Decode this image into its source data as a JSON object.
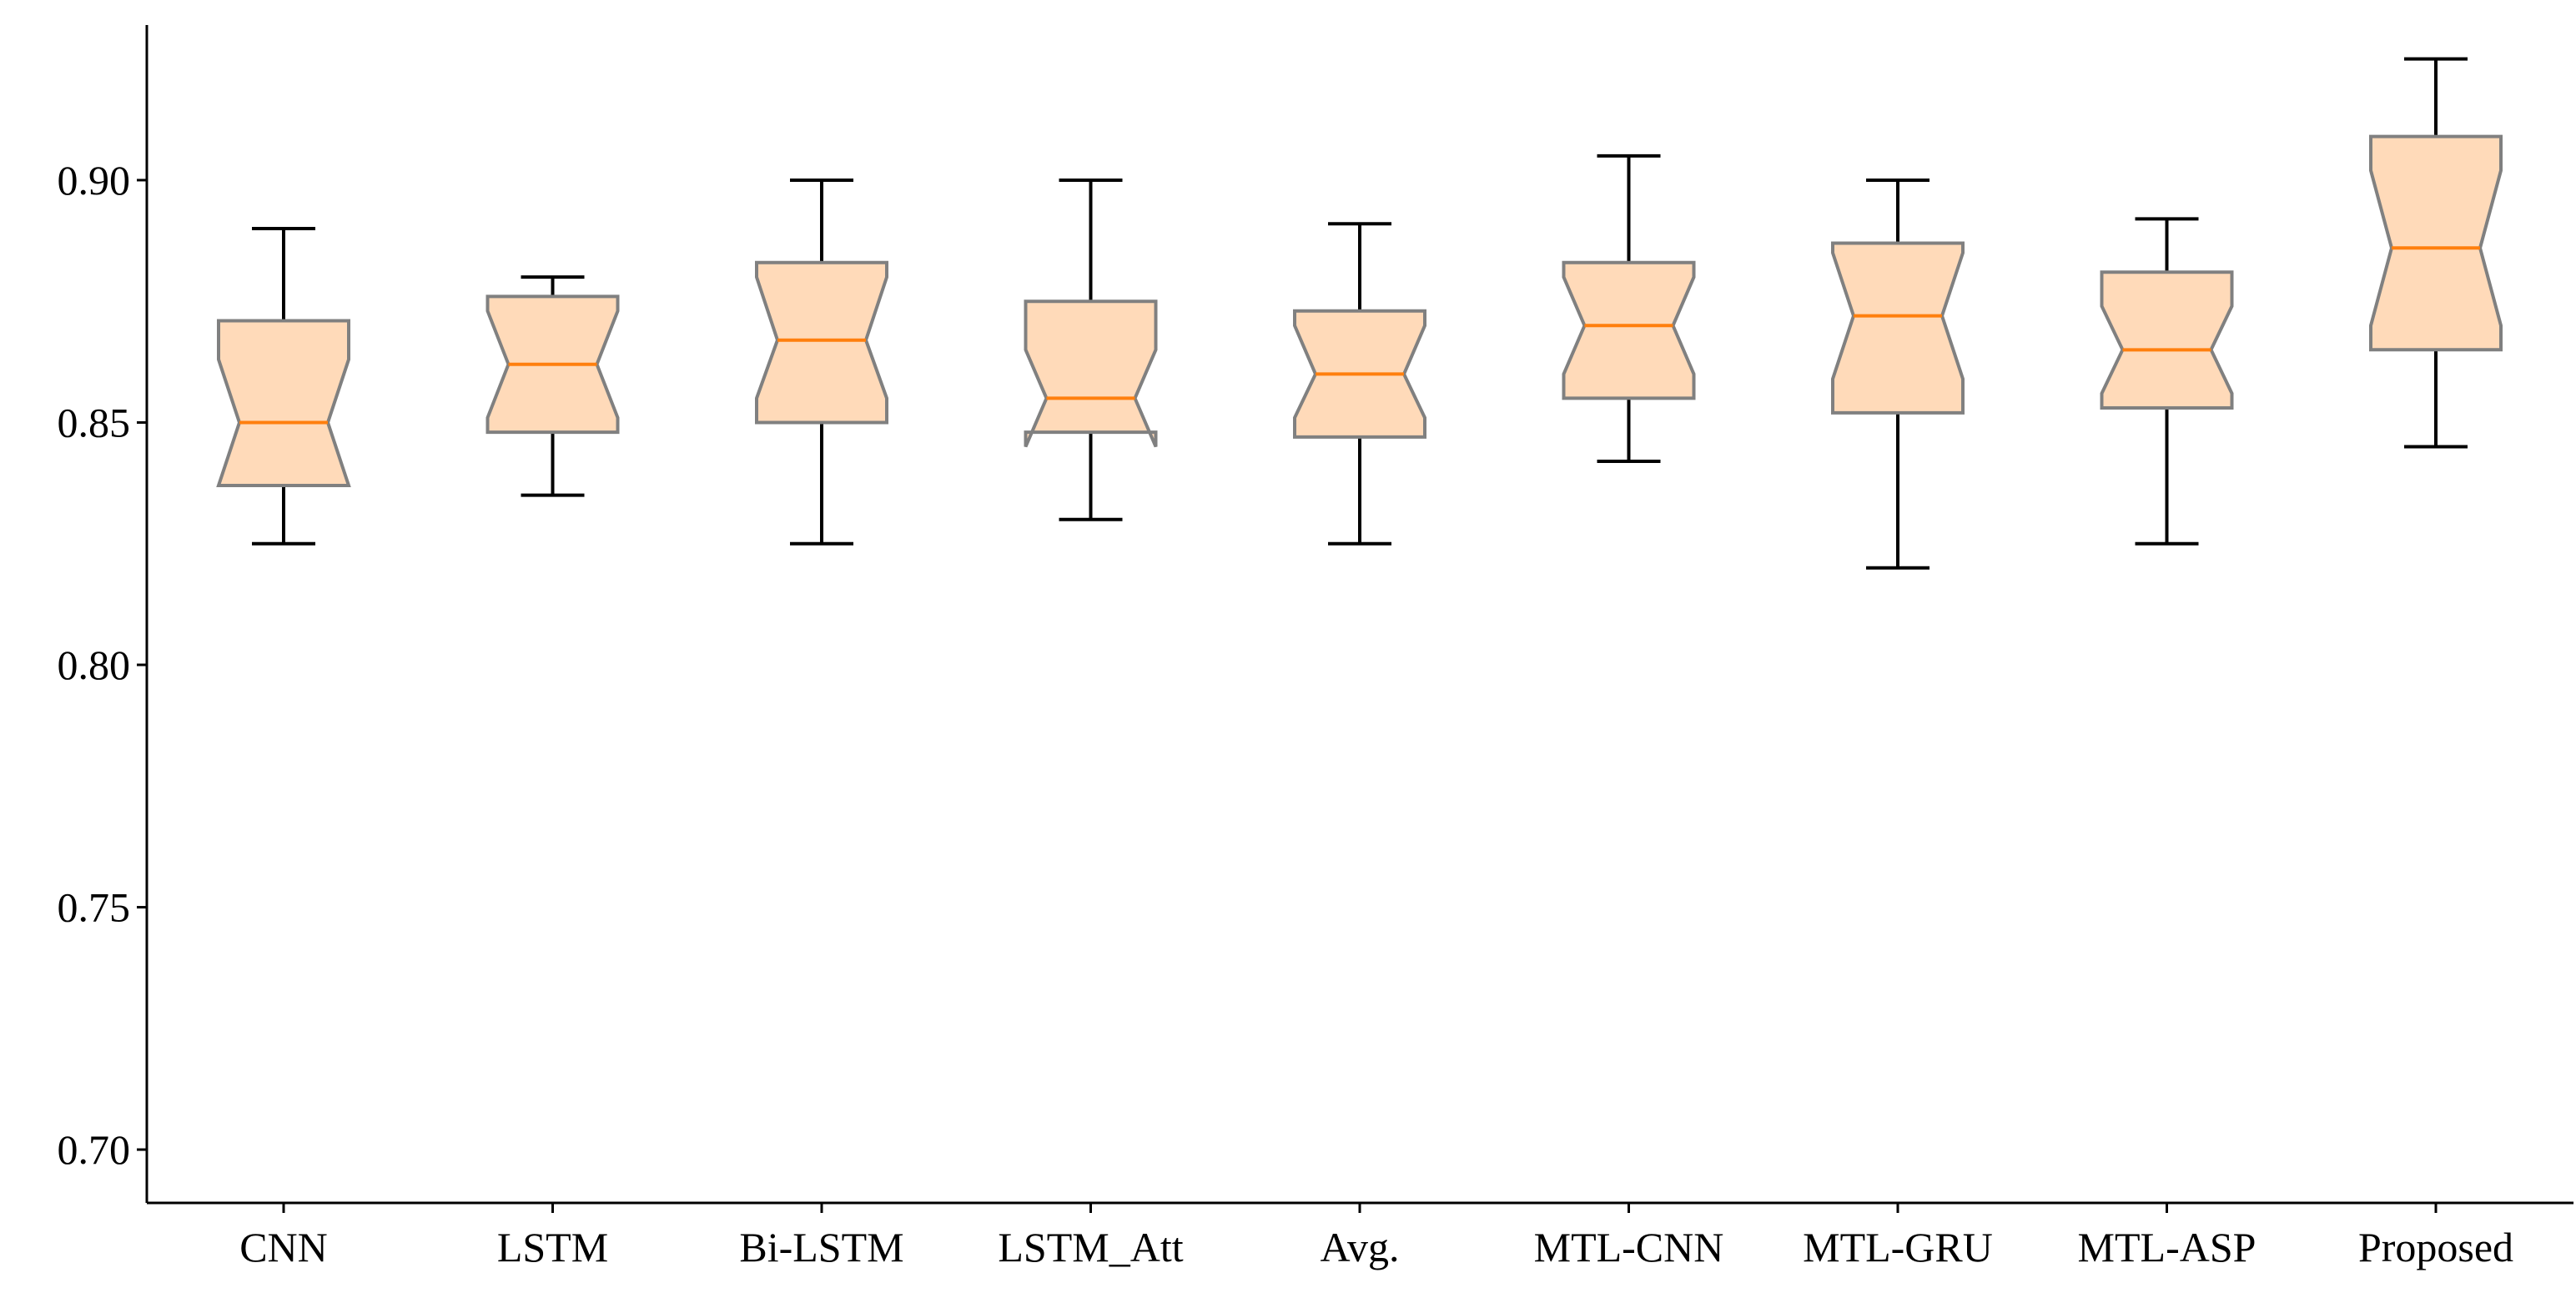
{
  "chart_data": {
    "type": "box",
    "notched": true,
    "title": "",
    "xlabel": "",
    "ylabel": "",
    "ylim": [
      0.689,
      0.932
    ],
    "yticks": [
      0.7,
      0.75,
      0.8,
      0.85,
      0.9
    ],
    "ytick_labels": [
      "0.70",
      "0.75",
      "0.80",
      "0.85",
      "0.90"
    ],
    "grid": false,
    "colors": {
      "box_fill": "#FFDAB9",
      "box_edge": "#808080",
      "median": "#FF7F0E",
      "whisker": "#000000"
    },
    "categories": [
      "CNN",
      "LSTM",
      "Bi-LSTM",
      "LSTM_Att",
      "Avg.",
      "MTL-CNN",
      "MTL-GRU",
      "MTL-ASP",
      "Proposed"
    ],
    "boxes": [
      {
        "label": "CNN",
        "whislo": 0.825,
        "q1": 0.837,
        "med": 0.85,
        "q3": 0.871,
        "whishi": 0.89,
        "notch_lo": 0.837,
        "notch_hi": 0.863
      },
      {
        "label": "LSTM",
        "whislo": 0.835,
        "q1": 0.848,
        "med": 0.862,
        "q3": 0.876,
        "whishi": 0.88,
        "notch_lo": 0.851,
        "notch_hi": 0.873
      },
      {
        "label": "Bi-LSTM",
        "whislo": 0.825,
        "q1": 0.85,
        "med": 0.867,
        "q3": 0.883,
        "whishi": 0.9,
        "notch_lo": 0.855,
        "notch_hi": 0.88
      },
      {
        "label": "LSTM_Att",
        "whislo": 0.83,
        "q1": 0.848,
        "med": 0.855,
        "q3": 0.875,
        "whishi": 0.9,
        "notch_lo": 0.845,
        "notch_hi": 0.865
      },
      {
        "label": "Avg.",
        "whislo": 0.825,
        "q1": 0.847,
        "med": 0.86,
        "q3": 0.873,
        "whishi": 0.891,
        "notch_lo": 0.851,
        "notch_hi": 0.87
      },
      {
        "label": "MTL-CNN",
        "whislo": 0.842,
        "q1": 0.855,
        "med": 0.87,
        "q3": 0.883,
        "whishi": 0.905,
        "notch_lo": 0.86,
        "notch_hi": 0.88
      },
      {
        "label": "MTL-GRU",
        "whislo": 0.82,
        "q1": 0.852,
        "med": 0.872,
        "q3": 0.887,
        "whishi": 0.9,
        "notch_lo": 0.859,
        "notch_hi": 0.885
      },
      {
        "label": "MTL-ASP",
        "whislo": 0.825,
        "q1": 0.853,
        "med": 0.865,
        "q3": 0.881,
        "whishi": 0.892,
        "notch_lo": 0.856,
        "notch_hi": 0.874
      },
      {
        "label": "Proposed",
        "whislo": 0.845,
        "q1": 0.865,
        "med": 0.886,
        "q3": 0.909,
        "whishi": 0.925,
        "notch_lo": 0.87,
        "notch_hi": 0.902
      }
    ]
  }
}
